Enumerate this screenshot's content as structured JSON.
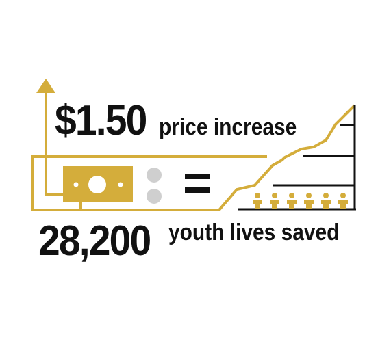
{
  "colors": {
    "accent": "#d4ad3b",
    "dark": "#111111",
    "coin": "#cfcfcf"
  },
  "headline": {
    "price_value": "$1.50",
    "price_text": "price increase"
  },
  "result": {
    "lives_value": "28,200",
    "lives_text": "youth lives saved"
  },
  "icons": {
    "arrow": "up-arrow-icon",
    "money": "dollar-bill-icon",
    "coins": "coins-icon",
    "equals": "equals-icon",
    "people": "person-icon"
  },
  "people_count": 6
}
